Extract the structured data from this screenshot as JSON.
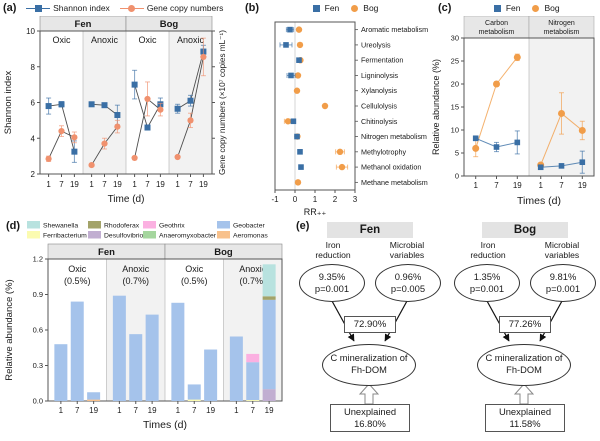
{
  "colors": {
    "fen_blue": "#3a6fa5",
    "bog_orange": "#f19d49",
    "gene_salmon": "#f0916e",
    "line_gray": "#4d4d4d",
    "band_gray": "#e7e7e7",
    "shade_gray": "#f2f2f2"
  },
  "chart_data": [
    {
      "type": "line",
      "label": "(a)",
      "legend": [
        {
          "label": "Shannon index",
          "color": "#3a6fa5",
          "marker": "square"
        },
        {
          "label": "Gene copy numbers",
          "color": "#f0916e",
          "marker": "circle"
        }
      ],
      "ylabel_left": "Shannon index",
      "ylabel_right": "Gene copy numbers (×10⁷ copies mL⁻¹)",
      "xlabel": "Time (d)",
      "ylim": [
        2,
        10
      ],
      "yticks": [
        2,
        4,
        6,
        8,
        10
      ],
      "x": [
        1,
        7,
        19
      ],
      "site_headers": [
        "Fen",
        "Bog"
      ],
      "groups": [
        {
          "site": "Fen",
          "condition": "Oxic",
          "shaded": false,
          "shannon": {
            "y": [
              5.8,
              5.9,
              3.25
            ],
            "err": [
              0.45,
              0.15,
              0.6
            ]
          },
          "gene": {
            "y": [
              2.85,
              4.4,
              4.05
            ],
            "err": [
              0.15,
              0.3,
              0.3
            ]
          }
        },
        {
          "site": "Fen",
          "condition": "Anoxic",
          "shaded": true,
          "shannon": {
            "y": [
              5.9,
              5.85,
              5.3
            ],
            "err": [
              0.08,
              0.1,
              0.55
            ]
          },
          "gene": {
            "y": [
              2.5,
              3.7,
              4.65
            ],
            "err": [
              0.08,
              0.3,
              0.35
            ]
          }
        },
        {
          "site": "Bog",
          "condition": "Oxic",
          "shaded": false,
          "shannon": {
            "y": [
              7.0,
              4.6,
              5.9
            ],
            "err": [
              0.8,
              0.12,
              0.35
            ]
          },
          "gene": {
            "y": [
              2.9,
              6.2,
              5.6
            ],
            "err": [
              0.08,
              0.95,
              0.35
            ]
          }
        },
        {
          "site": "Bog",
          "condition": "Anoxic",
          "shaded": true,
          "shannon": {
            "y": [
              5.65,
              6.1,
              8.85
            ],
            "err": [
              0.25,
              0.3,
              0.35
            ]
          },
          "gene": {
            "y": [
              2.95,
              5.0,
              8.55
            ],
            "err": [
              0.08,
              0.4,
              1.05
            ]
          }
        }
      ]
    },
    {
      "type": "scatter",
      "label": "(b)",
      "legend": [
        {
          "label": "Fen",
          "color": "#3a6fa5",
          "marker": "square"
        },
        {
          "label": "Bog",
          "color": "#f19d49",
          "marker": "circle"
        }
      ],
      "xlabel": "RR₊₊",
      "xlim": [
        -1,
        3
      ],
      "xticks": [
        -1,
        0,
        1,
        2,
        3
      ],
      "categories": [
        "Aromatic metabolism",
        "Ureolysis",
        "Fermentation",
        "Ligninolysis",
        "Xylanolysis",
        "Cellulolysis",
        "Chitinolysis",
        "Nitrogen metabolism",
        "Methylotrophy",
        "Methanol oxidation",
        "Methane metabolism"
      ],
      "fen": [
        -0.25,
        -0.45,
        0.2,
        -0.2,
        null,
        null,
        -0.08,
        0.1,
        0.25,
        0.3,
        null
      ],
      "fen_err": [
        0.18,
        0.3,
        0,
        0.2,
        0,
        0,
        0.1,
        0,
        0,
        0,
        0
      ],
      "bog": [
        0.2,
        0.25,
        0.27,
        0.15,
        0.1,
        1.5,
        -0.35,
        0.12,
        2.25,
        2.35,
        0.15
      ],
      "bog_err": [
        0,
        0,
        0,
        0,
        0,
        0,
        0.18,
        0,
        0.22,
        0.28,
        0
      ]
    },
    {
      "type": "line",
      "label": "(c)",
      "legend": [
        {
          "label": "Fen",
          "color": "#3a6fa5",
          "marker": "square"
        },
        {
          "label": "Bog",
          "color": "#f19d49",
          "marker": "circle"
        }
      ],
      "ylabel": "Relative abundance (%)",
      "xlabel": "Times (d)",
      "ylim": [
        0,
        30
      ],
      "yticks": [
        0,
        5,
        10,
        15,
        20,
        25,
        30
      ],
      "x": [
        1,
        7,
        19
      ],
      "sections": [
        {
          "header": [
            "Carbon",
            "metabolism"
          ],
          "shaded": false,
          "fen": {
            "y": [
              8.2,
              6.3,
              7.3
            ],
            "err": [
              0.5,
              1.0,
              2.5
            ]
          },
          "bog": {
            "y": [
              6.0,
              20.0,
              25.8
            ],
            "err": [
              1.8,
              0.5,
              0.7
            ]
          }
        },
        {
          "header": [
            "Nitrogen",
            "metabolism"
          ],
          "shaded": true,
          "fen": {
            "y": [
              1.9,
              2.2,
              3.0
            ],
            "err": [
              0.3,
              0.4,
              2.4
            ]
          },
          "bog": {
            "y": [
              2.4,
              13.6,
              9.9
            ],
            "err": [
              0.3,
              4.5,
              2.0
            ]
          }
        }
      ]
    },
    {
      "type": "bar",
      "label": "(d)",
      "legend": [
        {
          "label": "Shewanella",
          "color": "#b8e2df"
        },
        {
          "label": "Ferribacterium",
          "color": "#fbfbb0"
        },
        {
          "label": "Rhodoferax",
          "color": "#a3a369"
        },
        {
          "label": "Desulfovibrio",
          "color": "#c1aed1"
        },
        {
          "label": "Geothrix",
          "color": "#fbb0e1"
        },
        {
          "label": "Anaeromyxobacter",
          "color": "#a5d69e"
        },
        {
          "label": "Geobacter",
          "color": "#a5c3eb"
        },
        {
          "label": "Aeromonas",
          "color": "#f8c18c"
        }
      ],
      "ylabel": "Relative abundance (%)",
      "xlabel": "Times (d)",
      "ylim": [
        0,
        1.2
      ],
      "yticks": [
        0.0,
        0.3,
        0.6,
        0.9,
        1.2
      ],
      "x": [
        1,
        7,
        19
      ],
      "site_headers": [
        "Fen",
        "Bog"
      ],
      "sections": [
        {
          "condition": "Oxic",
          "pct": "(0.5%)",
          "shaded": false,
          "bars": [
            [
              [
                "Geobacter",
                0.48
              ]
            ],
            [
              [
                "Geobacter",
                0.84
              ]
            ],
            [
              [
                "Aeromonas",
                0.012
              ],
              [
                "Geobacter",
                0.062
              ]
            ]
          ]
        },
        {
          "condition": "Anoxic",
          "pct": "(0.7%)",
          "shaded": true,
          "bars": [
            [
              [
                "Geobacter",
                0.89
              ]
            ],
            [
              [
                "Geobacter",
                0.565
              ]
            ],
            [
              [
                "Geobacter",
                0.73
              ]
            ]
          ]
        },
        {
          "condition": "Oxic",
          "pct": "(0.5%)",
          "shaded": false,
          "bars": [
            [
              [
                "Geobacter",
                0.83
              ]
            ],
            [
              [
                "Ferribacterium",
                0.012
              ],
              [
                "Geobacter",
                0.128
              ]
            ],
            [
              [
                "Geobacter",
                0.435
              ]
            ]
          ]
        },
        {
          "condition": "Anoxic",
          "pct": "(0.7%)",
          "shaded": true,
          "bars": [
            [
              [
                "Geobacter",
                0.545
              ]
            ],
            [
              [
                "Ferribacterium",
                0.008
              ],
              [
                "Geobacter",
                0.32
              ],
              [
                "Geothrix",
                0.07
              ]
            ],
            [
              [
                "Desulfovibrio",
                0.1
              ],
              [
                "Geobacter",
                0.755
              ],
              [
                "Rhodoferax",
                0.03
              ],
              [
                "Shewanella",
                0.27
              ]
            ]
          ]
        }
      ]
    }
  ],
  "panel_e": {
    "label": "(e)",
    "models": [
      {
        "header": "Fen",
        "factors": [
          {
            "title": "Iron reduction",
            "value": "9.35%",
            "p": "p=0.001"
          },
          {
            "title": "Microbial variables",
            "value": "0.96%",
            "p": "p=0.005"
          }
        ],
        "explained": "72.90%",
        "outcome": "C mineralization of Fh-DOM",
        "unexplained_label": "Unexplained",
        "unexplained": "16.80%"
      },
      {
        "header": "Bog",
        "factors": [
          {
            "title": "Iron reduction",
            "value": "1.35%",
            "p": "p=0.001"
          },
          {
            "title": "Microbial variables",
            "value": "9.81%",
            "p": "p=0.001"
          }
        ],
        "explained": "77.26%",
        "outcome": "C mineralization of Fh-DOM",
        "unexplained_label": "Unexplained",
        "unexplained": "11.58%"
      }
    ]
  }
}
